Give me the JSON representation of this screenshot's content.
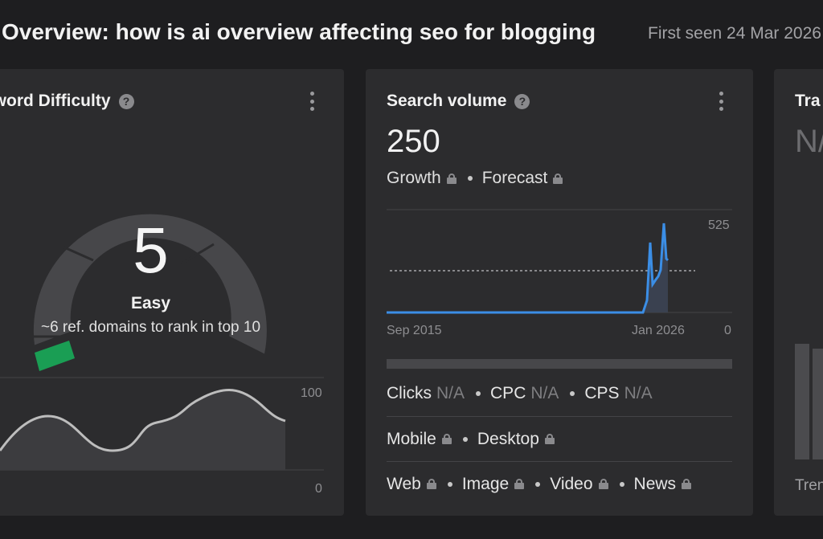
{
  "header": {
    "title": "Overview: how is ai overview affecting seo for blogging",
    "first_seen": "First seen 24 Mar 2026"
  },
  "keyword_difficulty": {
    "title": "yword Difficulty",
    "value": "5",
    "level": "Easy",
    "subtitle": "~6 ref. domains to rank in top 10",
    "gauge_level_percent": 5,
    "accent_color": "#1a9e54",
    "chart_axis_top": "100",
    "chart_axis_bottom": "0"
  },
  "search_volume": {
    "title": "Search volume",
    "value": "250",
    "tags": [
      "Growth",
      "Forecast"
    ],
    "chart": {
      "axis_max": "525",
      "axis_min": "0",
      "x_start": "Sep 2015",
      "x_end": "Jan 2026",
      "line_color": "#3b8ee6"
    },
    "rows": {
      "clicks_label": "Clicks",
      "clicks_value": "N/A",
      "cpc_label": "CPC",
      "cpc_value": "N/A",
      "cps_label": "CPS",
      "cps_value": "N/A",
      "devices": [
        "Mobile",
        "Desktop"
      ],
      "types": [
        "Web",
        "Image",
        "Video",
        "News"
      ]
    }
  },
  "traffic": {
    "title": "Tra",
    "value": "N/",
    "footer": "Tren"
  }
}
